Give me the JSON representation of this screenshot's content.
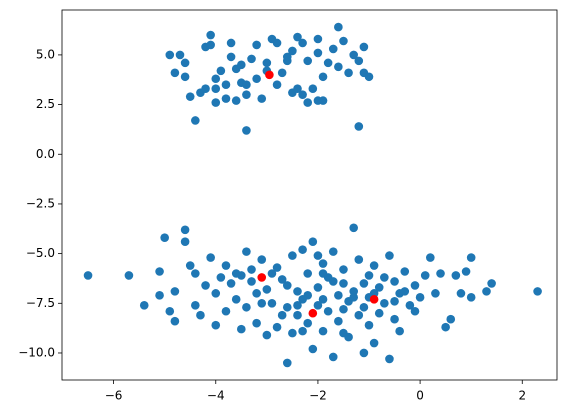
{
  "chart_data": {
    "type": "scatter",
    "xlim": [
      -7.01,
      2.68
    ],
    "ylim": [
      -11.36,
      7.26
    ],
    "xticks": [
      {
        "value": -6,
        "label": "−6"
      },
      {
        "value": -4,
        "label": "−4"
      },
      {
        "value": -2,
        "label": "−2"
      },
      0,
      2
    ],
    "yticks": [
      {
        "value": -10,
        "label": "−10.0"
      },
      {
        "value": -7.5,
        "label": "−7.5"
      },
      {
        "value": -5,
        "label": "−5.0"
      },
      {
        "value": -2.5,
        "label": "−2.5"
      },
      {
        "value": 0,
        "label": "0.0"
      },
      {
        "value": 2.5,
        "label": "2.5"
      },
      {
        "value": 5,
        "label": "5.0"
      }
    ],
    "series": [
      {
        "color": "#1f77b4",
        "x": [
          -4.9,
          -4.7,
          -4.8,
          -4.6,
          -4.6,
          -4.5,
          -4.3,
          -4.2,
          -4.1,
          -4.1,
          -4.0,
          -4.0,
          -3.9,
          -4.0,
          -3.8,
          -3.8,
          -3.7,
          -3.7,
          -3.6,
          -3.6,
          -3.5,
          -3.5,
          -3.4,
          -3.4,
          -3.3,
          -3.2,
          -3.2,
          -3.1,
          -3.0,
          -2.9,
          -2.8,
          -2.8,
          -2.7,
          -2.6,
          -2.5,
          -2.5,
          -2.4,
          -2.4,
          -2.3,
          -2.3,
          -2.2,
          -2.2,
          -2.1,
          -2.0,
          -2.0,
          -2.0,
          -1.9,
          -1.9,
          -1.8,
          -1.7,
          -1.6,
          -1.6,
          -1.5,
          -1.4,
          -1.3,
          -1.2,
          -1.2,
          -1.1,
          -1.1,
          -1.0,
          -4.4,
          -4.2,
          -3.0,
          -2.6,
          -3.4,
          -6.5,
          -5.7,
          -5.4,
          -5.1,
          -5.1,
          -5.0,
          -4.9,
          -4.8,
          -4.8,
          -4.6,
          -4.6,
          -4.5,
          -4.4,
          -4.4,
          -4.3,
          -4.2,
          -4.1,
          -4.0,
          -4.0,
          -3.9,
          -3.8,
          -3.8,
          -3.7,
          -3.6,
          -3.5,
          -3.5,
          -3.4,
          -3.4,
          -3.3,
          -3.2,
          -3.2,
          -3.1,
          -3.0,
          -3.0,
          -2.9,
          -2.8,
          -2.8,
          -2.7,
          -2.6,
          -2.6,
          -2.5,
          -2.5,
          -2.4,
          -2.4,
          -2.3,
          -2.3,
          -2.2,
          -2.2,
          -2.1,
          -2.1,
          -2.0,
          -2.0,
          -1.9,
          -1.9,
          -1.8,
          -1.8,
          -1.7,
          -1.7,
          -1.6,
          -1.6,
          -1.5,
          -1.5,
          -1.4,
          -1.4,
          -1.3,
          -1.3,
          -1.2,
          -1.2,
          -1.1,
          -1.1,
          -1.0,
          -1.0,
          -0.9,
          -0.9,
          -0.8,
          -0.8,
          -0.7,
          -0.6,
          -0.6,
          -0.5,
          -0.5,
          -0.4,
          -0.4,
          -0.3,
          -0.2,
          -0.1,
          -0.1,
          0.0,
          0.1,
          0.2,
          0.3,
          0.4,
          0.5,
          0.6,
          0.7,
          0.8,
          0.9,
          1.0,
          1.0,
          1.3,
          1.4,
          2.3,
          -2.9,
          -2.6,
          -2.4,
          -2.2,
          -1.9,
          -1.7,
          -1.5,
          -1.3,
          -1.1,
          -0.9,
          -0.7,
          -0.5,
          -3.3,
          -3.1,
          -2.7,
          -2.3,
          -1.9,
          -1.5,
          -3.6,
          -2.0,
          -1.0,
          -0.3
        ],
        "y": [
          5.0,
          5.0,
          4.1,
          4.6,
          3.9,
          2.9,
          3.1,
          5.4,
          6.0,
          5.5,
          3.8,
          3.3,
          4.2,
          2.6,
          2.8,
          3.5,
          5.6,
          4.9,
          4.3,
          2.7,
          3.6,
          4.5,
          1.2,
          3.0,
          4.8,
          5.5,
          3.8,
          2.8,
          4.6,
          5.8,
          5.6,
          3.5,
          4.1,
          4.7,
          3.1,
          5.2,
          3.3,
          5.9,
          3.0,
          5.6,
          2.6,
          4.7,
          3.3,
          5.8,
          5.1,
          2.7,
          2.7,
          3.9,
          4.6,
          5.3,
          6.4,
          4.4,
          5.7,
          4.1,
          5.0,
          4.7,
          1.4,
          4.1,
          5.4,
          3.9,
          1.7,
          3.3,
          4.2,
          4.9,
          3.5,
          -6.1,
          -6.1,
          -7.6,
          -7.1,
          -5.9,
          -4.2,
          -7.9,
          -6.9,
          -8.4,
          -3.8,
          -4.4,
          -5.6,
          -7.6,
          -6.0,
          -8.1,
          -6.6,
          -5.2,
          -7.0,
          -8.6,
          -6.2,
          -7.9,
          -5.6,
          -6.5,
          -7.3,
          -8.8,
          -6.1,
          -4.9,
          -7.7,
          -5.8,
          -7.0,
          -8.5,
          -5.3,
          -6.8,
          -9.1,
          -7.5,
          -5.7,
          -8.7,
          -6.3,
          -7.7,
          -10.5,
          -5.1,
          -9.0,
          -6.9,
          -8.1,
          -4.8,
          -7.3,
          -6.0,
          -8.5,
          -9.8,
          -4.4,
          -6.7,
          -7.6,
          -5.5,
          -8.9,
          -6.2,
          -7.9,
          -10.2,
          -4.9,
          -7.1,
          -8.4,
          -5.8,
          -6.5,
          -9.2,
          -7.4,
          -3.7,
          -6.9,
          -8.1,
          -5.3,
          -7.7,
          -10.0,
          -6.1,
          -8.6,
          -5.6,
          -9.5,
          -6.7,
          -8.0,
          -7.5,
          -10.3,
          -5.1,
          -6.4,
          -8.3,
          -7.0,
          -8.9,
          -5.9,
          -7.6,
          -6.6,
          -7.9,
          -7.2,
          -6.1,
          -5.2,
          -7.0,
          -6.0,
          -8.7,
          -8.3,
          -6.1,
          -7.0,
          -5.9,
          -7.2,
          -5.2,
          -6.9,
          -6.5,
          -6.9,
          -6.0,
          -6.6,
          -7.6,
          -7.1,
          -7.3,
          -6.4,
          -7.8,
          -7.2,
          -6.5,
          -7.0,
          -6.2,
          -7.4,
          -6.4,
          -7.5,
          -8.1,
          -8.9,
          -6.0,
          -9.0,
          -6.0,
          -5.1,
          -7.2,
          -6.9
        ]
      },
      {
        "color": "#ff0000",
        "x": [
          -2.95,
          -3.1,
          -2.1,
          -0.9
        ],
        "y": [
          4.0,
          -6.2,
          -8.0,
          -7.3
        ]
      }
    ]
  }
}
